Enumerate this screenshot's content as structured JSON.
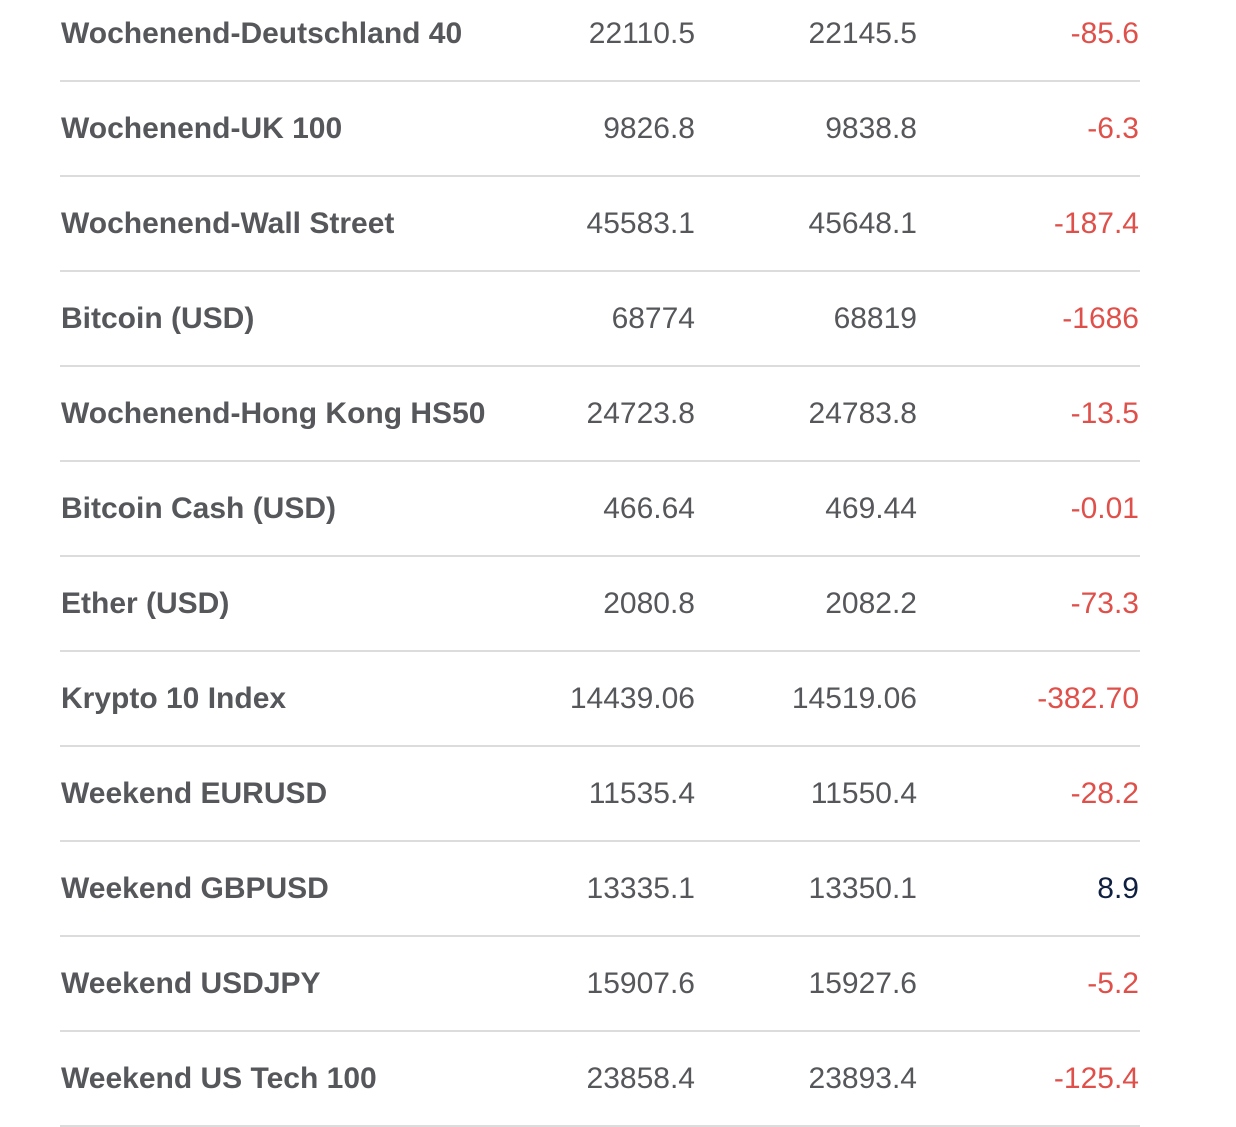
{
  "colors": {
    "negative": "#e0504a",
    "positive": "#0f1f3f",
    "text": "#56575b"
  },
  "rows": [
    {
      "name": "Wochenend-Deutschland 40",
      "bid": "22110.5",
      "ask": "22145.5",
      "change": "-85.6"
    },
    {
      "name": "Wochenend-UK 100",
      "bid": "9826.8",
      "ask": "9838.8",
      "change": "-6.3"
    },
    {
      "name": "Wochenend-Wall Street",
      "bid": "45583.1",
      "ask": "45648.1",
      "change": "-187.4"
    },
    {
      "name": "Bitcoin (USD)",
      "bid": "68774",
      "ask": "68819",
      "change": "-1686"
    },
    {
      "name": "Wochenend-Hong Kong HS50",
      "bid": "24723.8",
      "ask": "24783.8",
      "change": "-13.5"
    },
    {
      "name": "Bitcoin Cash (USD)",
      "bid": "466.64",
      "ask": "469.44",
      "change": "-0.01"
    },
    {
      "name": "Ether (USD)",
      "bid": "2080.8",
      "ask": "2082.2",
      "change": "-73.3"
    },
    {
      "name": "Krypto 10 Index",
      "bid": "14439.06",
      "ask": "14519.06",
      "change": "-382.70"
    },
    {
      "name": "Weekend EURUSD",
      "bid": "11535.4",
      "ask": "11550.4",
      "change": "-28.2"
    },
    {
      "name": "Weekend GBPUSD",
      "bid": "13335.1",
      "ask": "13350.1",
      "change": "8.9"
    },
    {
      "name": "Weekend USDJPY",
      "bid": "15907.6",
      "ask": "15927.6",
      "change": "-5.2"
    },
    {
      "name": "Weekend US Tech 100",
      "bid": "23858.4",
      "ask": "23893.4",
      "change": "-125.4"
    }
  ]
}
